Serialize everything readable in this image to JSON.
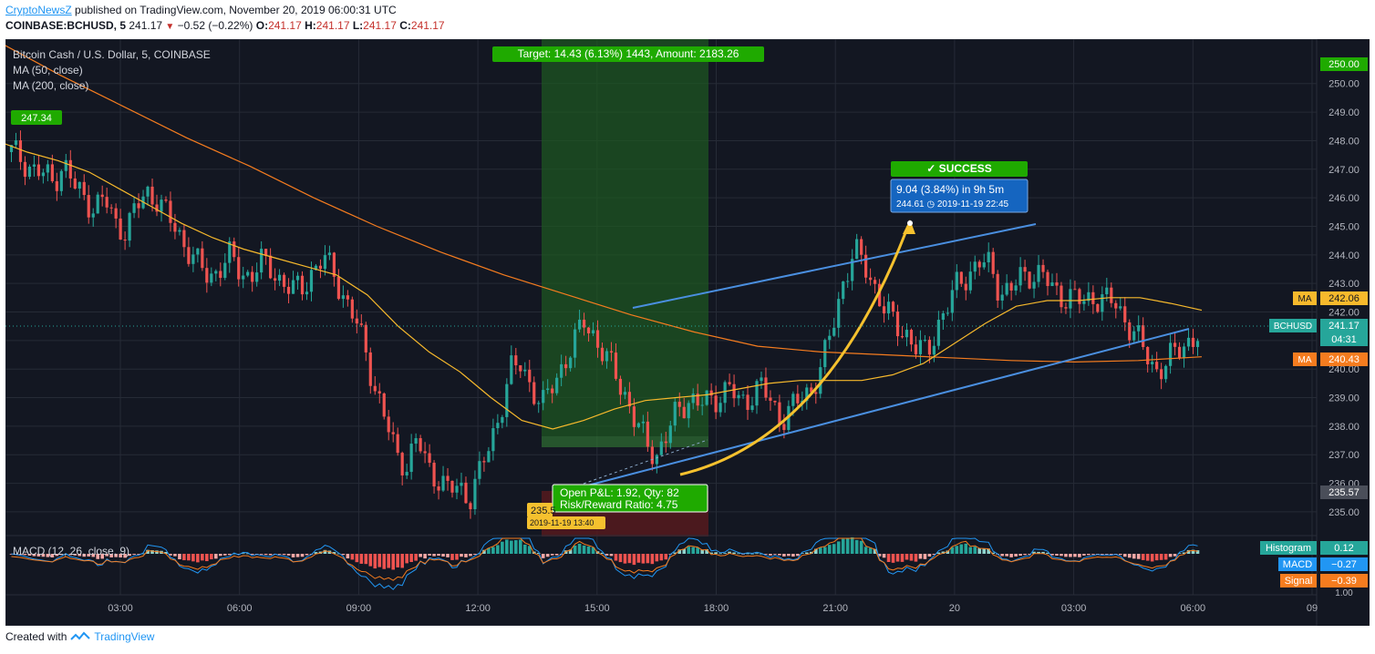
{
  "header": {
    "brand": "CryptoNewsZ",
    "published": "published on TradingView.com, November 20, 2019 06:00:31 UTC",
    "symbol": "COINBASE:BCHUSD, 5",
    "price": "241.17",
    "change": "−0.52 (−0.22%)",
    "o_label": "O:",
    "o_val": "241.17",
    "h_label": "H:",
    "h_val": "241.17",
    "l_label": "L:",
    "l_val": "241.17",
    "c_label": "C:",
    "c_val": "241.17"
  },
  "legend": {
    "title": "Bitcoin Cash / U.S. Dollar, 5, COINBASE",
    "ma50": "MA (50, close)",
    "ma200": "MA (200, close)",
    "macd": "MACD (12, 26, close, 9)"
  },
  "annotations": {
    "target": "Target: 14.43 (6.13%) 1443, Amount: 2183.26",
    "success": "✓ SUCCESS",
    "range_line1": "9.04 (3.84%) in 9h 5m",
    "range_line2": "244.61 ◷ 2019-11-19  22:45",
    "open_pnl": "Open P&L: 1.92, Qty: 82",
    "risk_reward": "Risk/Reward Ratio: 4.75",
    "entry_price": "235.5",
    "entry_time": "2019-11-19 13:40",
    "start_price": "247.34"
  },
  "price_labels": {
    "top": "250.00",
    "ma50": "242.06",
    "ma_tag": "MA",
    "symbol": "BCHUSD",
    "last": "241.17",
    "countdown": "04:31",
    "ma200": "240.43",
    "stop": "235.57"
  },
  "macd_labels": {
    "hist_name": "Histogram",
    "hist_val": "0.12",
    "macd_name": "MACD",
    "macd_val": "−0.27",
    "signal_name": "Signal",
    "signal_val": "−0.39",
    "axis_top": "1.00"
  },
  "footer": {
    "created": "Created with",
    "tv": "TradingView"
  },
  "colors": {
    "bg": "#131722",
    "up": "#26a69a",
    "down": "#ef5350",
    "ma50": "#f7b92c",
    "ma200": "#f57c1f",
    "channel": "#4a8fe0",
    "target_zone": "#1e5a21",
    "stop_zone": "#5a1a1e",
    "curve": "#f5c12e"
  },
  "chart_data": {
    "type": "candlestick",
    "y_axis": {
      "ticks": [
        235,
        236,
        237,
        238,
        239,
        240,
        241,
        242,
        243,
        244,
        245,
        246,
        247,
        248,
        249,
        250
      ],
      "range": [
        234.2,
        251.3
      ]
    },
    "x_axis": {
      "ticks": [
        "03:00",
        "06:00",
        "09:00",
        "12:00",
        "15:00",
        "18:00",
        "21:00",
        "20",
        "03:00",
        "06:00",
        "09"
      ]
    },
    "price_series": [
      247.6,
      247.4,
      247.0,
      246.8,
      246.6,
      247.2,
      246.4,
      246.0,
      245.7,
      245.9,
      245.1,
      244.9,
      245.6,
      246.2,
      246.0,
      245.3,
      244.8,
      244.2,
      243.6,
      243.2,
      243.6,
      243.9,
      243.4,
      243.3,
      243.7,
      243.5,
      243.1,
      242.7,
      242.9,
      243.5,
      243.8,
      243.4,
      242.5,
      241.7,
      240.7,
      239.3,
      238.1,
      237.0,
      236.7,
      237.5,
      236.6,
      236.2,
      235.7,
      235.9,
      235.5,
      236.3,
      237.4,
      238.6,
      239.9,
      240.2,
      239.4,
      238.6,
      239.5,
      240.2,
      240.7,
      241.8,
      241.2,
      240.3,
      240.0,
      239.1,
      238.0,
      237.5,
      237.0,
      237.6,
      238.6,
      239.0,
      238.7,
      238.9,
      239.1,
      239.3,
      238.8,
      239.1,
      239.4,
      238.8,
      238.3,
      238.6,
      239.0,
      239.4,
      240.2,
      241.6,
      243.2,
      244.1,
      243.6,
      242.9,
      242.0,
      241.5,
      241.3,
      240.7,
      240.5,
      241.6,
      242.2,
      243.0,
      243.4,
      243.7,
      243.6,
      242.8,
      242.7,
      243.2,
      243.4,
      243.3,
      242.8,
      242.6,
      242.5,
      242.3,
      242.6,
      242.4,
      242.3,
      241.8,
      241.2,
      240.5,
      240.0,
      240.2,
      240.6,
      241.0,
      241.17
    ],
    "ma50": [
      248.0,
      247.6,
      247.3,
      246.9,
      246.3,
      245.7,
      245.1,
      244.6,
      244.2,
      243.9,
      243.6,
      243.3,
      242.6,
      241.5,
      240.6,
      239.9,
      239.0,
      238.2,
      237.9,
      238.2,
      238.6,
      238.9,
      239.0,
      239.1,
      239.3,
      239.5,
      239.6,
      239.6,
      239.6,
      239.8,
      240.2,
      240.9,
      241.6,
      242.2,
      242.4,
      242.4,
      242.5,
      242.5,
      242.3,
      242.06
    ],
    "ma200": [
      251.5,
      250.3,
      249.2,
      248.1,
      247.1,
      246.0,
      245.0,
      244.1,
      243.3,
      242.6,
      241.9,
      241.3,
      240.8,
      240.6,
      240.5,
      240.4,
      240.3,
      240.25,
      240.3,
      240.43
    ],
    "series": [
      {
        "name": "MA (50, close)",
        "value": 242.06
      },
      {
        "name": "MA (200, close)",
        "value": 240.43
      }
    ],
    "last": 241.17,
    "position": {
      "entry": 235.5,
      "target": 250.0,
      "stop": 235.57,
      "qty": 82
    },
    "macd": {
      "histogram": 0.12,
      "macd": -0.27,
      "signal": -0.39
    }
  }
}
